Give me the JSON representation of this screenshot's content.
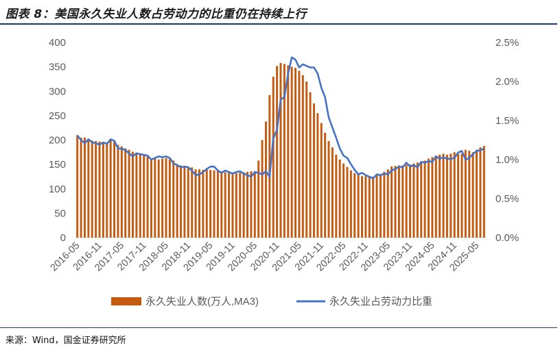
{
  "title": "图表 8：美国永久失业人数占劳动力的比重仍在持续上行",
  "source": "来源：Wind，国金证券研究所",
  "colors": {
    "bar": "#C55A11",
    "line": "#4472C4",
    "axis": "#d9d9d9",
    "text": "#595959"
  },
  "chart_data": {
    "type": "bar+line",
    "x_tick_labels": [
      "2016-05",
      "2016-11",
      "2017-05",
      "2017-11",
      "2018-05",
      "2018-11",
      "2019-05",
      "2019-11",
      "2020-05",
      "2020-11",
      "2021-05",
      "2021-11",
      "2022-05",
      "2022-11",
      "2023-05",
      "2023-11",
      "2024-05",
      "2024-11",
      "2025-05"
    ],
    "y_left": {
      "ticks": [
        0,
        50,
        100,
        150,
        200,
        250,
        300,
        350,
        400
      ],
      "range": [
        0,
        400
      ]
    },
    "y_right": {
      "ticks": [
        "0.0%",
        "0.5%",
        "1.0%",
        "1.5%",
        "2.0%",
        "2.5%"
      ],
      "range": [
        0,
        2.5
      ],
      "unit": "%"
    },
    "legend": {
      "placement": "bottom"
    },
    "series": [
      {
        "name": "永久失业人数(万人,MA3)",
        "type": "bar",
        "axis": "left",
        "values": [
          210,
          205,
          205,
          200,
          199,
          198,
          197,
          196,
          195,
          200,
          196,
          190,
          187,
          183,
          180,
          176,
          172,
          170,
          168,
          166,
          162,
          162,
          160,
          162,
          163,
          161,
          158,
          150,
          148,
          147,
          146,
          144,
          140,
          140,
          139,
          140,
          139,
          138,
          137,
          136,
          134,
          134,
          133,
          132,
          133,
          134,
          135,
          136,
          136,
          158,
          200,
          238,
          292,
          330,
          352,
          358,
          356,
          353,
          350,
          348,
          342,
          333,
          320,
          298,
          275,
          255,
          235,
          215,
          198,
          185,
          170,
          160,
          152,
          145,
          138,
          132,
          130,
          126,
          126,
          124,
          125,
          128,
          130,
          135,
          140,
          146,
          147,
          148,
          148,
          149,
          150,
          152,
          154,
          156,
          158,
          162,
          165,
          168,
          170,
          172,
          170,
          172,
          175,
          172,
          172,
          180,
          178,
          175,
          180,
          185,
          188
        ],
        "x_start": "2016-05",
        "x_end": "2025-05"
      },
      {
        "name": "永久失业占劳动力比重",
        "type": "line",
        "axis": "right",
        "unit": "%",
        "values": [
          1.31,
          1.25,
          1.21,
          1.26,
          1.22,
          1.21,
          1.19,
          1.22,
          1.2,
          1.26,
          1.24,
          1.14,
          1.14,
          1.12,
          1.08,
          1.04,
          1.08,
          1.07,
          1.06,
          1.05,
          1.0,
          1.02,
          1.04,
          1.03,
          1.04,
          1.02,
          0.95,
          0.93,
          0.9,
          0.91,
          0.9,
          0.86,
          0.8,
          0.81,
          0.84,
          0.88,
          0.91,
          0.91,
          0.86,
          0.83,
          0.86,
          0.84,
          0.82,
          0.84,
          0.85,
          0.82,
          0.8,
          0.78,
          0.84,
          0.83,
          0.81,
          0.85,
          0.78,
          1.27,
          1.38,
          1.77,
          1.8,
          2.1,
          2.31,
          2.28,
          2.18,
          2.22,
          2.2,
          2.18,
          2.18,
          2.1,
          1.92,
          1.8,
          1.54,
          1.41,
          1.28,
          1.14,
          1.05,
          1.02,
          0.94,
          0.87,
          0.81,
          0.83,
          0.8,
          0.78,
          0.76,
          0.81,
          0.8,
          0.82,
          0.81,
          0.86,
          0.88,
          0.91,
          0.9,
          0.96,
          0.91,
          0.93,
          0.9,
          0.97,
          0.96,
          0.98,
          0.97,
          1.04,
          1.01,
          1.03,
          1.01,
          1.01,
          1.02,
          1.09,
          1.11,
          1.0,
          1.02,
          1.07,
          1.11,
          1.12,
          1.14
        ]
      }
    ]
  }
}
